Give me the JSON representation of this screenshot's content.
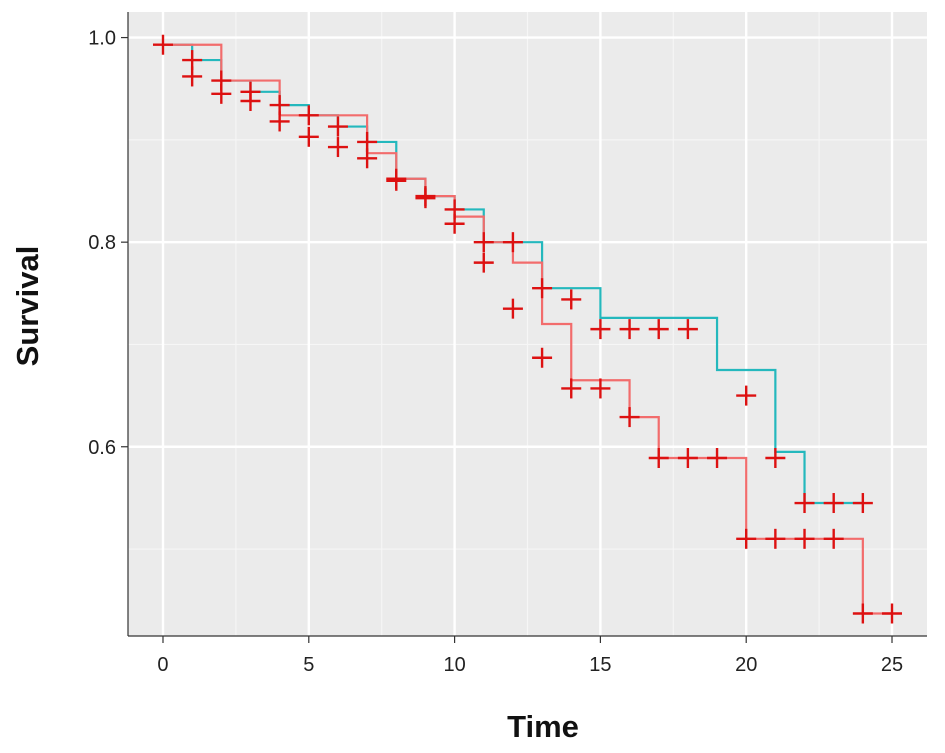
{
  "chart_data": {
    "type": "line",
    "subtype": "kaplan-meier step",
    "xlabel": "Time",
    "ylabel": "Survival",
    "xlim": [
      -1.2,
      26.2
    ],
    "ylim": [
      0.415,
      1.025
    ],
    "x_ticks": [
      0,
      5,
      10,
      15,
      20,
      25
    ],
    "x_tick_labels": [
      "0",
      "5",
      "10",
      "15",
      "20",
      "25"
    ],
    "y_ticks": [
      0.6,
      0.8,
      1.0
    ],
    "y_tick_labels": [
      "0.6",
      "0.8",
      "1.0"
    ],
    "grid": true,
    "background": "#ebebeb",
    "legend": "none",
    "series": [
      {
        "color": "#24b8bd",
        "steps": [
          [
            0,
            0.993
          ],
          [
            1,
            0.978
          ],
          [
            2,
            0.958
          ],
          [
            3,
            0.947
          ],
          [
            4,
            0.934
          ],
          [
            5,
            0.924
          ],
          [
            6,
            0.913
          ],
          [
            7,
            0.898
          ],
          [
            8,
            0.862
          ],
          [
            9,
            0.845
          ],
          [
            10,
            0.832
          ],
          [
            11,
            0.8
          ],
          [
            13,
            0.755
          ],
          [
            15,
            0.726
          ],
          [
            19,
            0.675
          ],
          [
            21,
            0.595
          ],
          [
            22,
            0.545
          ],
          [
            24,
            0.545
          ]
        ],
        "censor_marks": [
          [
            0,
            0.993
          ],
          [
            1,
            0.978
          ],
          [
            2,
            0.958
          ],
          [
            3,
            0.947
          ],
          [
            4,
            0.934
          ],
          [
            5,
            0.924
          ],
          [
            6,
            0.913
          ],
          [
            7,
            0.898
          ],
          [
            8,
            0.862
          ],
          [
            9,
            0.845
          ],
          [
            10,
            0.832
          ],
          [
            11,
            0.8
          ],
          [
            12,
            0.8
          ],
          [
            13,
            0.755
          ],
          [
            14,
            0.744
          ],
          [
            15,
            0.715
          ],
          [
            16,
            0.715
          ],
          [
            17,
            0.715
          ],
          [
            18,
            0.715
          ],
          [
            20,
            0.65
          ],
          [
            21,
            0.589
          ],
          [
            22,
            0.545
          ],
          [
            23,
            0.545
          ],
          [
            24,
            0.545
          ]
        ]
      },
      {
        "color": "#f26c6c",
        "steps": [
          [
            0,
            0.993
          ],
          [
            2,
            0.958
          ],
          [
            4,
            0.924
          ],
          [
            7,
            0.887
          ],
          [
            8,
            0.862
          ],
          [
            9,
            0.845
          ],
          [
            10,
            0.825
          ],
          [
            11,
            0.8
          ],
          [
            12,
            0.78
          ],
          [
            13,
            0.72
          ],
          [
            14,
            0.665
          ],
          [
            16,
            0.629
          ],
          [
            17,
            0.589
          ],
          [
            20,
            0.51
          ],
          [
            24,
            0.437
          ],
          [
            25,
            0.437
          ]
        ],
        "censor_marks": [
          [
            1,
            0.962
          ],
          [
            2,
            0.945
          ],
          [
            3,
            0.938
          ],
          [
            4,
            0.918
          ],
          [
            5,
            0.903
          ],
          [
            6,
            0.893
          ],
          [
            7,
            0.882
          ],
          [
            8,
            0.86
          ],
          [
            9,
            0.843
          ],
          [
            10,
            0.818
          ],
          [
            11,
            0.78
          ],
          [
            12,
            0.735
          ],
          [
            13,
            0.687
          ],
          [
            14,
            0.657
          ],
          [
            15,
            0.657
          ],
          [
            16,
            0.629
          ],
          [
            17,
            0.589
          ],
          [
            18,
            0.589
          ],
          [
            19,
            0.589
          ],
          [
            20,
            0.51
          ],
          [
            21,
            0.51
          ],
          [
            22,
            0.51
          ],
          [
            23,
            0.51
          ],
          [
            24,
            0.437
          ],
          [
            25,
            0.437
          ]
        ]
      }
    ],
    "censor_mark_color": "#dd1111"
  }
}
